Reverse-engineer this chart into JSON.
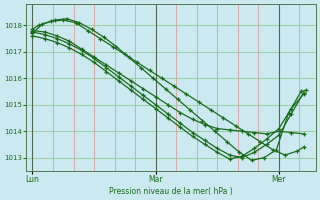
{
  "bg_color": "#cce8f0",
  "line_color": "#1a6b1a",
  "grid_color_v": "#e09090",
  "grid_color_h": "#90c890",
  "xlabel": "Pression niveau de la mer( hPa )",
  "yticks": [
    1013,
    1014,
    1015,
    1016,
    1017,
    1018
  ],
  "xtick_labels": [
    "Lun",
    "Mar",
    "Mer"
  ],
  "xtick_positions": [
    0.0,
    1.0,
    2.0
  ],
  "xlim": [
    -0.05,
    2.3
  ],
  "ylim": [
    1012.5,
    1018.8
  ],
  "series": [
    {
      "x": [
        0.0,
        0.1,
        0.2,
        0.3,
        0.4,
        0.5,
        0.6,
        0.7,
        0.8,
        0.9,
        1.0,
        1.1,
        1.2,
        1.3,
        1.4,
        1.5,
        1.6,
        1.7,
        1.8,
        1.9,
        2.0,
        2.1,
        2.2
      ],
      "y": [
        1017.8,
        1017.75,
        1017.6,
        1017.4,
        1017.1,
        1016.8,
        1016.5,
        1016.2,
        1015.9,
        1015.6,
        1015.3,
        1015.0,
        1014.7,
        1014.45,
        1014.25,
        1014.1,
        1014.05,
        1014.0,
        1013.95,
        1013.9,
        1014.0,
        1013.95,
        1013.9
      ]
    },
    {
      "x": [
        0.0,
        0.05,
        0.15,
        0.25,
        0.35,
        0.45,
        0.55,
        0.65,
        0.75,
        0.85,
        0.95,
        1.05,
        1.15,
        1.25,
        1.35,
        1.45,
        1.55,
        1.65,
        1.75,
        1.85,
        1.95,
        2.05,
        2.15,
        2.2
      ],
      "y": [
        1017.85,
        1018.0,
        1018.15,
        1018.2,
        1018.1,
        1017.8,
        1017.5,
        1017.2,
        1016.9,
        1016.6,
        1016.3,
        1016.0,
        1015.7,
        1015.4,
        1015.1,
        1014.8,
        1014.5,
        1014.2,
        1013.9,
        1013.6,
        1013.3,
        1013.1,
        1013.25,
        1013.4
      ]
    },
    {
      "x": [
        0.0,
        0.08,
        0.18,
        0.28,
        0.38,
        0.48,
        0.58,
        0.68,
        0.78,
        0.88,
        0.98,
        1.08,
        1.18,
        1.28,
        1.38,
        1.48,
        1.58,
        1.68,
        1.78,
        1.88,
        1.98,
        2.08,
        2.18,
        2.22
      ],
      "y": [
        1017.7,
        1018.05,
        1018.2,
        1018.25,
        1018.1,
        1017.85,
        1017.55,
        1017.2,
        1016.8,
        1016.4,
        1016.0,
        1015.6,
        1015.2,
        1014.8,
        1014.4,
        1014.0,
        1013.6,
        1013.2,
        1012.9,
        1013.0,
        1013.3,
        1014.7,
        1015.5,
        1015.55
      ]
    },
    {
      "x": [
        0.0,
        0.1,
        0.2,
        0.3,
        0.4,
        0.5,
        0.6,
        0.7,
        0.8,
        0.9,
        1.0,
        1.1,
        1.2,
        1.3,
        1.4,
        1.5,
        1.6,
        1.7,
        1.8,
        1.9,
        2.0,
        2.1,
        2.2
      ],
      "y": [
        1017.75,
        1017.65,
        1017.5,
        1017.3,
        1017.05,
        1016.75,
        1016.4,
        1016.05,
        1015.7,
        1015.35,
        1015.0,
        1014.65,
        1014.3,
        1013.95,
        1013.65,
        1013.35,
        1013.1,
        1013.0,
        1013.2,
        1013.5,
        1013.85,
        1014.65,
        1015.45
      ]
    },
    {
      "x": [
        0.0,
        0.1,
        0.2,
        0.3,
        0.4,
        0.5,
        0.6,
        0.7,
        0.8,
        0.9,
        1.0,
        1.1,
        1.2,
        1.3,
        1.4,
        1.5,
        1.6,
        1.7,
        1.8,
        1.9,
        2.0,
        2.1,
        2.2
      ],
      "y": [
        1017.6,
        1017.5,
        1017.35,
        1017.15,
        1016.9,
        1016.6,
        1016.25,
        1015.9,
        1015.55,
        1015.2,
        1014.85,
        1014.5,
        1014.15,
        1013.8,
        1013.5,
        1013.2,
        1012.95,
        1013.05,
        1013.35,
        1013.7,
        1014.1,
        1014.85,
        1015.4
      ]
    }
  ],
  "vgrid_positions": [
    0.0,
    0.167,
    0.333,
    0.5,
    0.667,
    0.833,
    1.0,
    1.167,
    1.333,
    1.5,
    1.667,
    1.833,
    2.0,
    2.167,
    2.3
  ]
}
